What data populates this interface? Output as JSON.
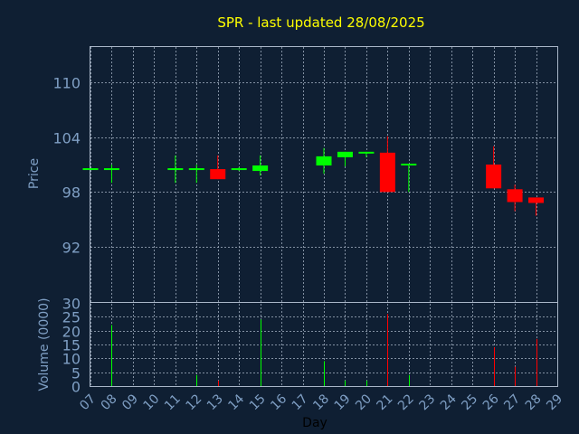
{
  "chart_data": {
    "type": "candlestick",
    "title": "SPR - last updated 28/08/2025",
    "xlabel": "Day",
    "price_panel": {
      "ylabel": "Price",
      "yticks": [
        92,
        98,
        104,
        110
      ],
      "ylim": [
        86,
        110
      ]
    },
    "volume_panel": {
      "ylabel": "Volume (0000)",
      "yticks": [
        0,
        5,
        10,
        15,
        20,
        25,
        30
      ],
      "ylim": [
        0,
        30
      ]
    },
    "x_ticks": [
      "07",
      "08",
      "09",
      "10",
      "11",
      "12",
      "13",
      "14",
      "15",
      "16",
      "17",
      "18",
      "19",
      "20",
      "21",
      "22",
      "23",
      "24",
      "25",
      "26",
      "27",
      "28",
      "29"
    ],
    "colors": {
      "up": "#00ff00",
      "down": "#ff0000",
      "background": "#0f1f33",
      "title": "#ffff00",
      "axis_text": "#7f9fc4"
    },
    "candles": [
      {
        "day": 7,
        "open": 100.5,
        "close": 100.5,
        "high": 100.6,
        "low": 100.4,
        "volume": 0,
        "dir": "up"
      },
      {
        "day": 8,
        "open": 100.5,
        "close": 100.5,
        "high": 101.0,
        "low": 99.0,
        "volume": 22,
        "dir": "up"
      },
      {
        "day": 11,
        "open": 100.5,
        "close": 100.5,
        "high": 102.0,
        "low": 99.0,
        "volume": 0,
        "dir": "up"
      },
      {
        "day": 12,
        "open": 100.5,
        "close": 100.5,
        "high": 101.0,
        "low": 99.0,
        "volume": 4,
        "dir": "up"
      },
      {
        "day": 13,
        "open": 100.5,
        "close": 99.4,
        "high": 102.0,
        "low": 99.4,
        "volume": 2,
        "dir": "down"
      },
      {
        "day": 14,
        "open": 100.5,
        "close": 100.5,
        "high": 100.7,
        "low": 100.3,
        "volume": 0,
        "dir": "up"
      },
      {
        "day": 15,
        "open": 100.3,
        "close": 100.9,
        "high": 102.0,
        "low": 99.8,
        "volume": 24,
        "dir": "up"
      },
      {
        "day": 18,
        "open": 100.9,
        "close": 101.9,
        "high": 102.8,
        "low": 100.0,
        "volume": 9,
        "dir": "up"
      },
      {
        "day": 19,
        "open": 101.8,
        "close": 102.4,
        "high": 102.4,
        "low": 100.8,
        "volume": 2,
        "dir": "up"
      },
      {
        "day": 20,
        "open": 102.3,
        "close": 102.3,
        "high": 102.4,
        "low": 101.8,
        "volume": 2,
        "dir": "up"
      },
      {
        "day": 21,
        "open": 102.3,
        "close": 98.0,
        "high": 104.1,
        "low": 98.0,
        "volume": 26,
        "dir": "down"
      },
      {
        "day": 22,
        "open": 101.0,
        "close": 101.0,
        "high": 101.0,
        "low": 98.0,
        "volume": 4,
        "dir": "up"
      },
      {
        "day": 26,
        "open": 101.0,
        "close": 98.4,
        "high": 103.0,
        "low": 98.4,
        "volume": 14,
        "dir": "down"
      },
      {
        "day": 27,
        "open": 98.3,
        "close": 96.9,
        "high": 98.8,
        "low": 95.9,
        "volume": 7,
        "dir": "down"
      },
      {
        "day": 28,
        "open": 97.4,
        "close": 96.8,
        "high": 97.4,
        "low": 95.4,
        "volume": 17,
        "dir": "down"
      }
    ]
  }
}
